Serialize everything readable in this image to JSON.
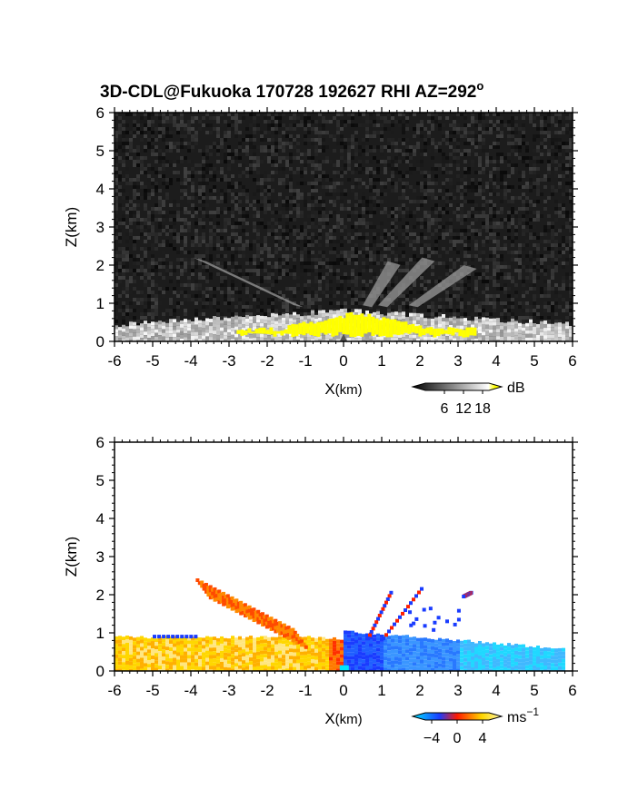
{
  "chart_data": [
    {
      "type": "heatmap",
      "title": "3D-CDL@Fukuoka 170728 192627 RHI AZ=292",
      "title_superscript": "o",
      "xlabel": "X",
      "xlabel_unit": "(km)",
      "ylabel": "Z(km)",
      "xlim": [
        -6,
        6
      ],
      "ylim": [
        0,
        6
      ],
      "xticks": [
        "-6",
        "-5",
        "-4",
        "-3",
        "-2",
        "-1",
        "0",
        "1",
        "2",
        "3",
        "4",
        "5",
        "6"
      ],
      "yticks": [
        "0",
        "1",
        "2",
        "3",
        "4",
        "5",
        "6"
      ],
      "background_noise_db": 2,
      "boundary_layer_top_km": 0.8,
      "features": [
        {
          "name": "high-snr-core",
          "x_range": [
            -2.8,
            3.4
          ],
          "z_range": [
            0.1,
            0.75
          ],
          "value_db": 19
        },
        {
          "name": "beam-streak",
          "x_start": -3.8,
          "z_start": 2.2,
          "x_end": -1.2,
          "z_end": 0.9
        },
        {
          "name": "beam-streak",
          "x_start": 1.3,
          "z_start": 2.1,
          "x_end": 0.6,
          "z_end": 0.9
        },
        {
          "name": "beam-streak",
          "x_start": 2.2,
          "z_start": 2.2,
          "x_end": 1.0,
          "z_end": 0.9
        },
        {
          "name": "beam-streak",
          "x_start": 3.3,
          "z_start": 2.0,
          "x_end": 1.8,
          "z_end": 0.9
        }
      ],
      "colorbar": {
        "unit": "dB",
        "tick_labels": [
          "6",
          "12",
          "18"
        ],
        "tick_values": [
          6,
          12,
          18
        ],
        "range": [
          0,
          20
        ],
        "colors": [
          "#000000",
          "#ffffff",
          "#ffff00"
        ]
      }
    },
    {
      "type": "heatmap",
      "xlabel": "X",
      "xlabel_unit": "(km)",
      "ylabel": "Z(km)",
      "xlim": [
        -6,
        6
      ],
      "ylim": [
        0,
        6
      ],
      "xticks": [
        "-6",
        "-5",
        "-4",
        "-3",
        "-2",
        "-1",
        "0",
        "1",
        "2",
        "3",
        "4",
        "5",
        "6"
      ],
      "yticks": [
        "0",
        "1",
        "2",
        "3",
        "4",
        "5",
        "6"
      ],
      "features": [
        {
          "name": "positive-velocity-layer",
          "x_range": [
            -6,
            0
          ],
          "z_top_km": 0.85,
          "value_ms": 3
        },
        {
          "name": "negative-velocity-layer",
          "x_range": [
            0,
            5.8
          ],
          "z_top_km": 1.0,
          "value_ms": -3
        },
        {
          "name": "plume",
          "x_start": -3.7,
          "z_start": 2.2,
          "x_end": -1.2,
          "z_end": 0.9,
          "value_ms": 1.5
        },
        {
          "name": "streak",
          "x_start": 1.2,
          "z_start": 2.1,
          "x_end": 0.6,
          "z_end": 0.9
        },
        {
          "name": "streak",
          "x_start": 2.0,
          "z_start": 2.2,
          "x_end": 1.0,
          "z_end": 0.9
        },
        {
          "name": "streak",
          "x_start": 3.3,
          "z_start": 2.1,
          "x_end": 3.1,
          "z_end": 2.0
        }
      ],
      "colorbar": {
        "unit": "ms",
        "unit_superscript": "−1",
        "tick_labels": [
          "−4",
          "0",
          "4"
        ],
        "tick_values": [
          -4,
          0,
          4
        ],
        "range": [
          -5,
          5
        ],
        "colors": [
          "#00e5ff",
          "#1a3cff",
          "#ff1a00",
          "#ffd700",
          "#fff6b0"
        ]
      }
    }
  ]
}
